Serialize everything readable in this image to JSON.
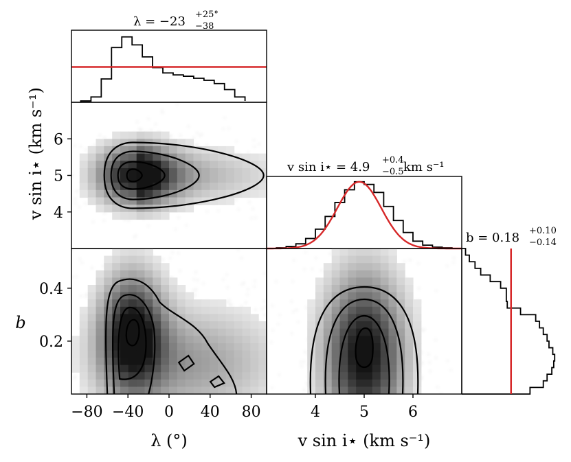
{
  "chart_data": {
    "type": "corner",
    "parameters": [
      {
        "name": "lambda",
        "label": "λ (°)",
        "range": [
          -95,
          95
        ],
        "ticks": [
          -80,
          -40,
          0,
          40,
          80
        ],
        "tick_labels": [
          "−80",
          "−40",
          "0",
          "40",
          "80"
        ]
      },
      {
        "name": "vsini",
        "label": "v sin i⋆ (km s⁻¹)",
        "range": [
          3.0,
          7.0
        ],
        "ticks": [
          4,
          5,
          6
        ],
        "tick_labels": [
          "4",
          "5",
          "6"
        ]
      },
      {
        "name": "b",
        "label": "b",
        "range": [
          0.0,
          0.55
        ],
        "ticks": [
          0.2,
          0.4
        ],
        "tick_labels": [
          "0.2",
          "0.4"
        ]
      }
    ],
    "titles": {
      "lambda": {
        "main": "λ = −23",
        "sup": "+25°",
        "sub": "−38"
      },
      "vsini": {
        "main": "v sin i⋆ = 4.9",
        "sup": "+0.4",
        "sub": "−0.5",
        "unit": " km s⁻¹"
      },
      "b": {
        "main": "b = 0.18",
        "sup": "+0.10",
        "sub": "−0.14"
      }
    },
    "histograms": {
      "lambda": {
        "bin_edges": [
          -86,
          -76,
          -66,
          -56,
          -46,
          -36,
          -26,
          -16,
          -6,
          4,
          14,
          24,
          34,
          44,
          54,
          64,
          74
        ],
        "counts": [
          0.02,
          0.08,
          0.35,
          0.82,
          0.98,
          0.86,
          0.68,
          0.52,
          0.44,
          0.41,
          0.39,
          0.36,
          0.33,
          0.28,
          0.19,
          0.08,
          0.02
        ],
        "reference_line": {
          "orientation": "horizontal",
          "value": 0.53
        }
      },
      "vsini": {
        "bin_edges": [
          3.2,
          3.4,
          3.6,
          3.8,
          4.0,
          4.2,
          4.4,
          4.6,
          4.8,
          5.0,
          5.2,
          5.4,
          5.6,
          5.8,
          6.0,
          6.2,
          6.4,
          6.6,
          6.8
        ],
        "counts": [
          0.01,
          0.03,
          0.07,
          0.15,
          0.29,
          0.48,
          0.69,
          0.88,
          1.0,
          0.96,
          0.84,
          0.63,
          0.42,
          0.24,
          0.11,
          0.05,
          0.02,
          0.01
        ],
        "model_curve": {
          "type": "gaussian",
          "mu": 4.9,
          "sigma": 0.45
        }
      },
      "b": {
        "orientation": "horizontal",
        "bin_edges": [
          0.0,
          0.025,
          0.05,
          0.075,
          0.1,
          0.125,
          0.15,
          0.175,
          0.2,
          0.225,
          0.25,
          0.275,
          0.3,
          0.325,
          0.35,
          0.375,
          0.4,
          0.425,
          0.45,
          0.475,
          0.5,
          0.525,
          0.55
        ],
        "counts": [
          0.72,
          0.86,
          0.9,
          0.95,
          0.97,
          0.98,
          0.96,
          0.92,
          0.9,
          0.86,
          0.82,
          0.78,
          0.62,
          0.48,
          0.47,
          0.47,
          0.41,
          0.3,
          0.2,
          0.14,
          0.08,
          0.04
        ],
        "reference_line": {
          "orientation": "vertical",
          "value": 0.52
        }
      }
    },
    "joint": {
      "lambda_vsini": {
        "peak": [
          -35,
          5.0
        ],
        "contour_levels": 4
      },
      "lambda_b": {
        "peak": [
          -36,
          0.23
        ],
        "contour_levels": 4
      },
      "vsini_b": {
        "peak": [
          5.0,
          0.15
        ],
        "contour_levels": 4
      }
    },
    "reference_color": "#d62728"
  }
}
